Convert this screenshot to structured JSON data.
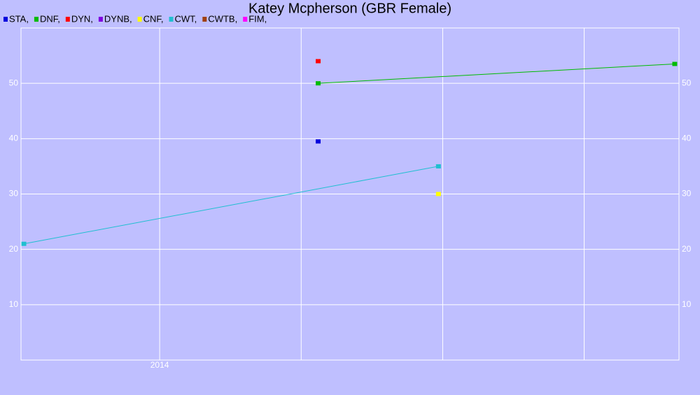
{
  "chart_data": {
    "type": "line",
    "title": "Katey Mcpherson (GBR Female)",
    "xlim": [
      2013.02,
      2017.67
    ],
    "xticks": [
      2014,
      {
        "value": 2015,
        "label": null
      },
      {
        "value": 2016,
        "label": null
      },
      {
        "value": 2017,
        "label": null
      }
    ],
    "ylim": [
      0,
      60
    ],
    "yticks": [
      10,
      20,
      30,
      40,
      50
    ],
    "grid": true,
    "series": [
      {
        "name": "STA,",
        "color": "#0000dd",
        "x": [
          2015.12
        ],
        "values": [
          39.5
        ]
      },
      {
        "name": "DNF,",
        "color": "#00bb00",
        "x": [
          2015.12,
          2017.64
        ],
        "values": [
          50,
          53.5
        ]
      },
      {
        "name": "DYN,",
        "color": "#ff0000",
        "x": [
          2015.12
        ],
        "values": [
          54
        ]
      },
      {
        "name": "DYNB,",
        "color": "#7f00e0",
        "x": [],
        "values": []
      },
      {
        "name": "CNF,",
        "color": "#ffff00",
        "x": [
          2015.97
        ],
        "values": [
          30
        ]
      },
      {
        "name": "CWT,",
        "color": "#20bfd0",
        "x": [
          2013.04,
          2015.97
        ],
        "values": [
          21,
          35
        ]
      },
      {
        "name": "CWTB,",
        "color": "#a04010",
        "x": [],
        "values": []
      },
      {
        "name": "FIM,",
        "color": "#ff00ff",
        "x": [],
        "values": []
      }
    ]
  }
}
